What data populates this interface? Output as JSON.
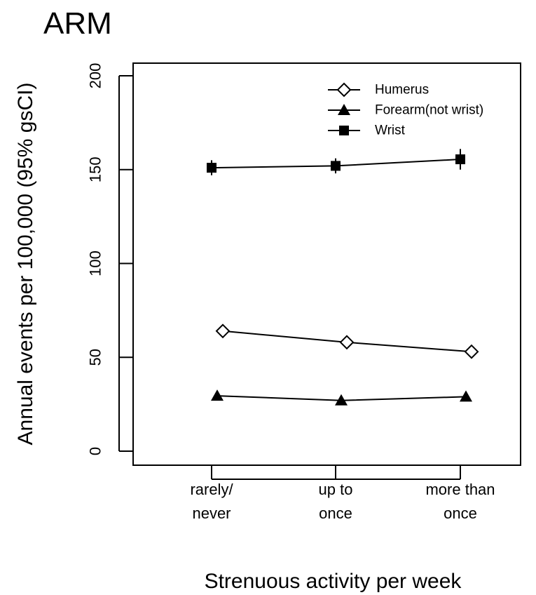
{
  "chart_data": {
    "type": "line",
    "title": "ARM",
    "xlabel": "Strenuous activity per week",
    "ylabel": "Annual events per 100,000 (95% gsCI)",
    "categories": [
      [
        "rarely/",
        "never"
      ],
      [
        "up to",
        "once"
      ],
      [
        "more than",
        "once"
      ]
    ],
    "ylim": [
      0,
      200
    ],
    "yticks": [
      "0",
      "50",
      "100",
      "150",
      "200"
    ],
    "grid": false,
    "legend_position": "top-right",
    "series": [
      {
        "name": "Humerus",
        "marker": "diamond-open",
        "values": [
          64,
          58,
          53
        ],
        "ci": [
          [
            62,
            66
          ],
          [
            56,
            60
          ],
          [
            51,
            55
          ]
        ]
      },
      {
        "name": "Forearm(not wrist)",
        "marker": "triangle-filled",
        "values": [
          29.5,
          27,
          29
        ],
        "ci": [
          [
            28,
            31
          ],
          [
            25.5,
            28.5
          ],
          [
            27.5,
            30.5
          ]
        ]
      },
      {
        "name": "Wrist",
        "marker": "square-filled",
        "values": [
          151,
          152,
          155.5
        ],
        "ci": [
          [
            147,
            155
          ],
          [
            148,
            156
          ],
          [
            150,
            161
          ]
        ]
      }
    ]
  }
}
